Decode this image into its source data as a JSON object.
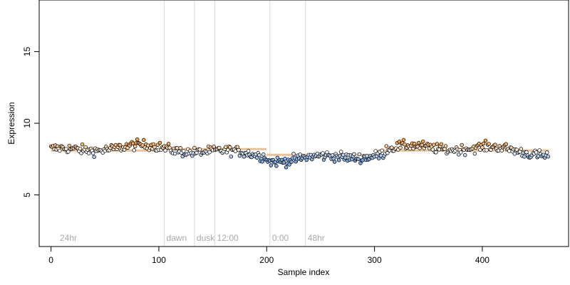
{
  "chart_data": {
    "type": "scatter",
    "xlabel": "Sample index",
    "ylabel": "Expression",
    "xlim": [
      -11,
      480
    ],
    "ylim": [
      1.4,
      18.6
    ],
    "x_ticks": [
      0,
      100,
      200,
      300,
      400
    ],
    "y_ticks": [
      5,
      10,
      15
    ],
    "x_tick_labels": [
      "0",
      "100",
      "200",
      "300",
      "400"
    ],
    "y_tick_labels": [
      "5",
      "10",
      "15"
    ],
    "grid": false,
    "legend": "none",
    "annotations": [
      {
        "x": 105,
        "label": "dawn"
      },
      {
        "x": 133,
        "label": "dusk"
      },
      {
        "x": 152,
        "label": "12:00"
      },
      {
        "x": 203,
        "label": "0:00"
      },
      {
        "x": 236,
        "label": "48hr"
      }
    ],
    "start_label": "24hr",
    "n_points": 462,
    "trend_segments": [
      {
        "x0": 0,
        "x1": 100,
        "y": 8.1
      },
      {
        "x0": 100,
        "x1": 200,
        "y": 8.2
      },
      {
        "x0": 200,
        "x1": 300,
        "y": 7.8
      },
      {
        "x0": 300,
        "x1": 462,
        "y": 8.1
      }
    ],
    "series": [
      {
        "x_start": 0,
        "x_end": 461,
        "mean": 8.05,
        "spread": 0.32,
        "low_color": "#7fa9e0",
        "mid_color": "#ffffff",
        "high_color": "#f0a14a"
      }
    ],
    "colors": {
      "trend": "#e8b27a",
      "annotation_line": "#d9d9d9",
      "annotation_text": "#a8a8a8",
      "point_edge": "#000000",
      "axis": "#000000"
    }
  }
}
